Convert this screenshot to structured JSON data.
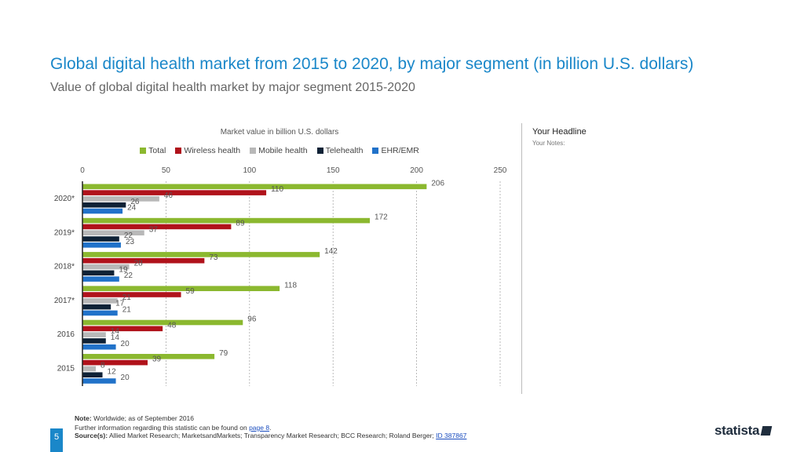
{
  "title": "Global digital health market from 2015 to 2020, by major segment (in billion U.S. dollars)",
  "subtitle": "Value of global digital health market by major segment 2015-2020",
  "sidebar": {
    "headline": "Your Headline",
    "notes": "Your Notes:"
  },
  "footer": {
    "note_label": "Note:",
    "note_text": "Worldwide; as of September 2016",
    "further_text": "Further information regarding this statistic can be found on",
    "further_link": "page 8",
    "source_label": "Source(s):",
    "source_text": "Allied Market Research; MarketsandMarkets; Transparency Market Research; BCC Research; Roland Berger;",
    "source_link": "ID 387867",
    "page_number": "5",
    "logo": "statista"
  },
  "chart_data": {
    "type": "bar",
    "orientation": "horizontal",
    "title": "Market value in billion U.S. dollars",
    "categories": [
      "2020*",
      "2019*",
      "2018*",
      "2017*",
      "2016",
      "2015"
    ],
    "xlim": [
      0,
      250
    ],
    "xticks": [
      0,
      50,
      100,
      150,
      200,
      250
    ],
    "grid": true,
    "legend_position": "top",
    "series": [
      {
        "name": "Total",
        "color": "#8bb82f",
        "values": [
          206,
          172,
          142,
          118,
          96,
          79
        ]
      },
      {
        "name": "Wireless health",
        "color": "#b0121b",
        "values": [
          110,
          89,
          73,
          59,
          48,
          39
        ]
      },
      {
        "name": "Mobile health",
        "color": "#b8b8b8",
        "values": [
          46,
          37,
          28,
          21,
          14,
          8
        ]
      },
      {
        "name": "Telehealth",
        "color": "#0f2236",
        "values": [
          26,
          22,
          19,
          17,
          14,
          12
        ]
      },
      {
        "name": "EHR/EMR",
        "color": "#2172c9",
        "values": [
          24,
          23,
          22,
          21,
          20,
          20
        ]
      }
    ]
  }
}
